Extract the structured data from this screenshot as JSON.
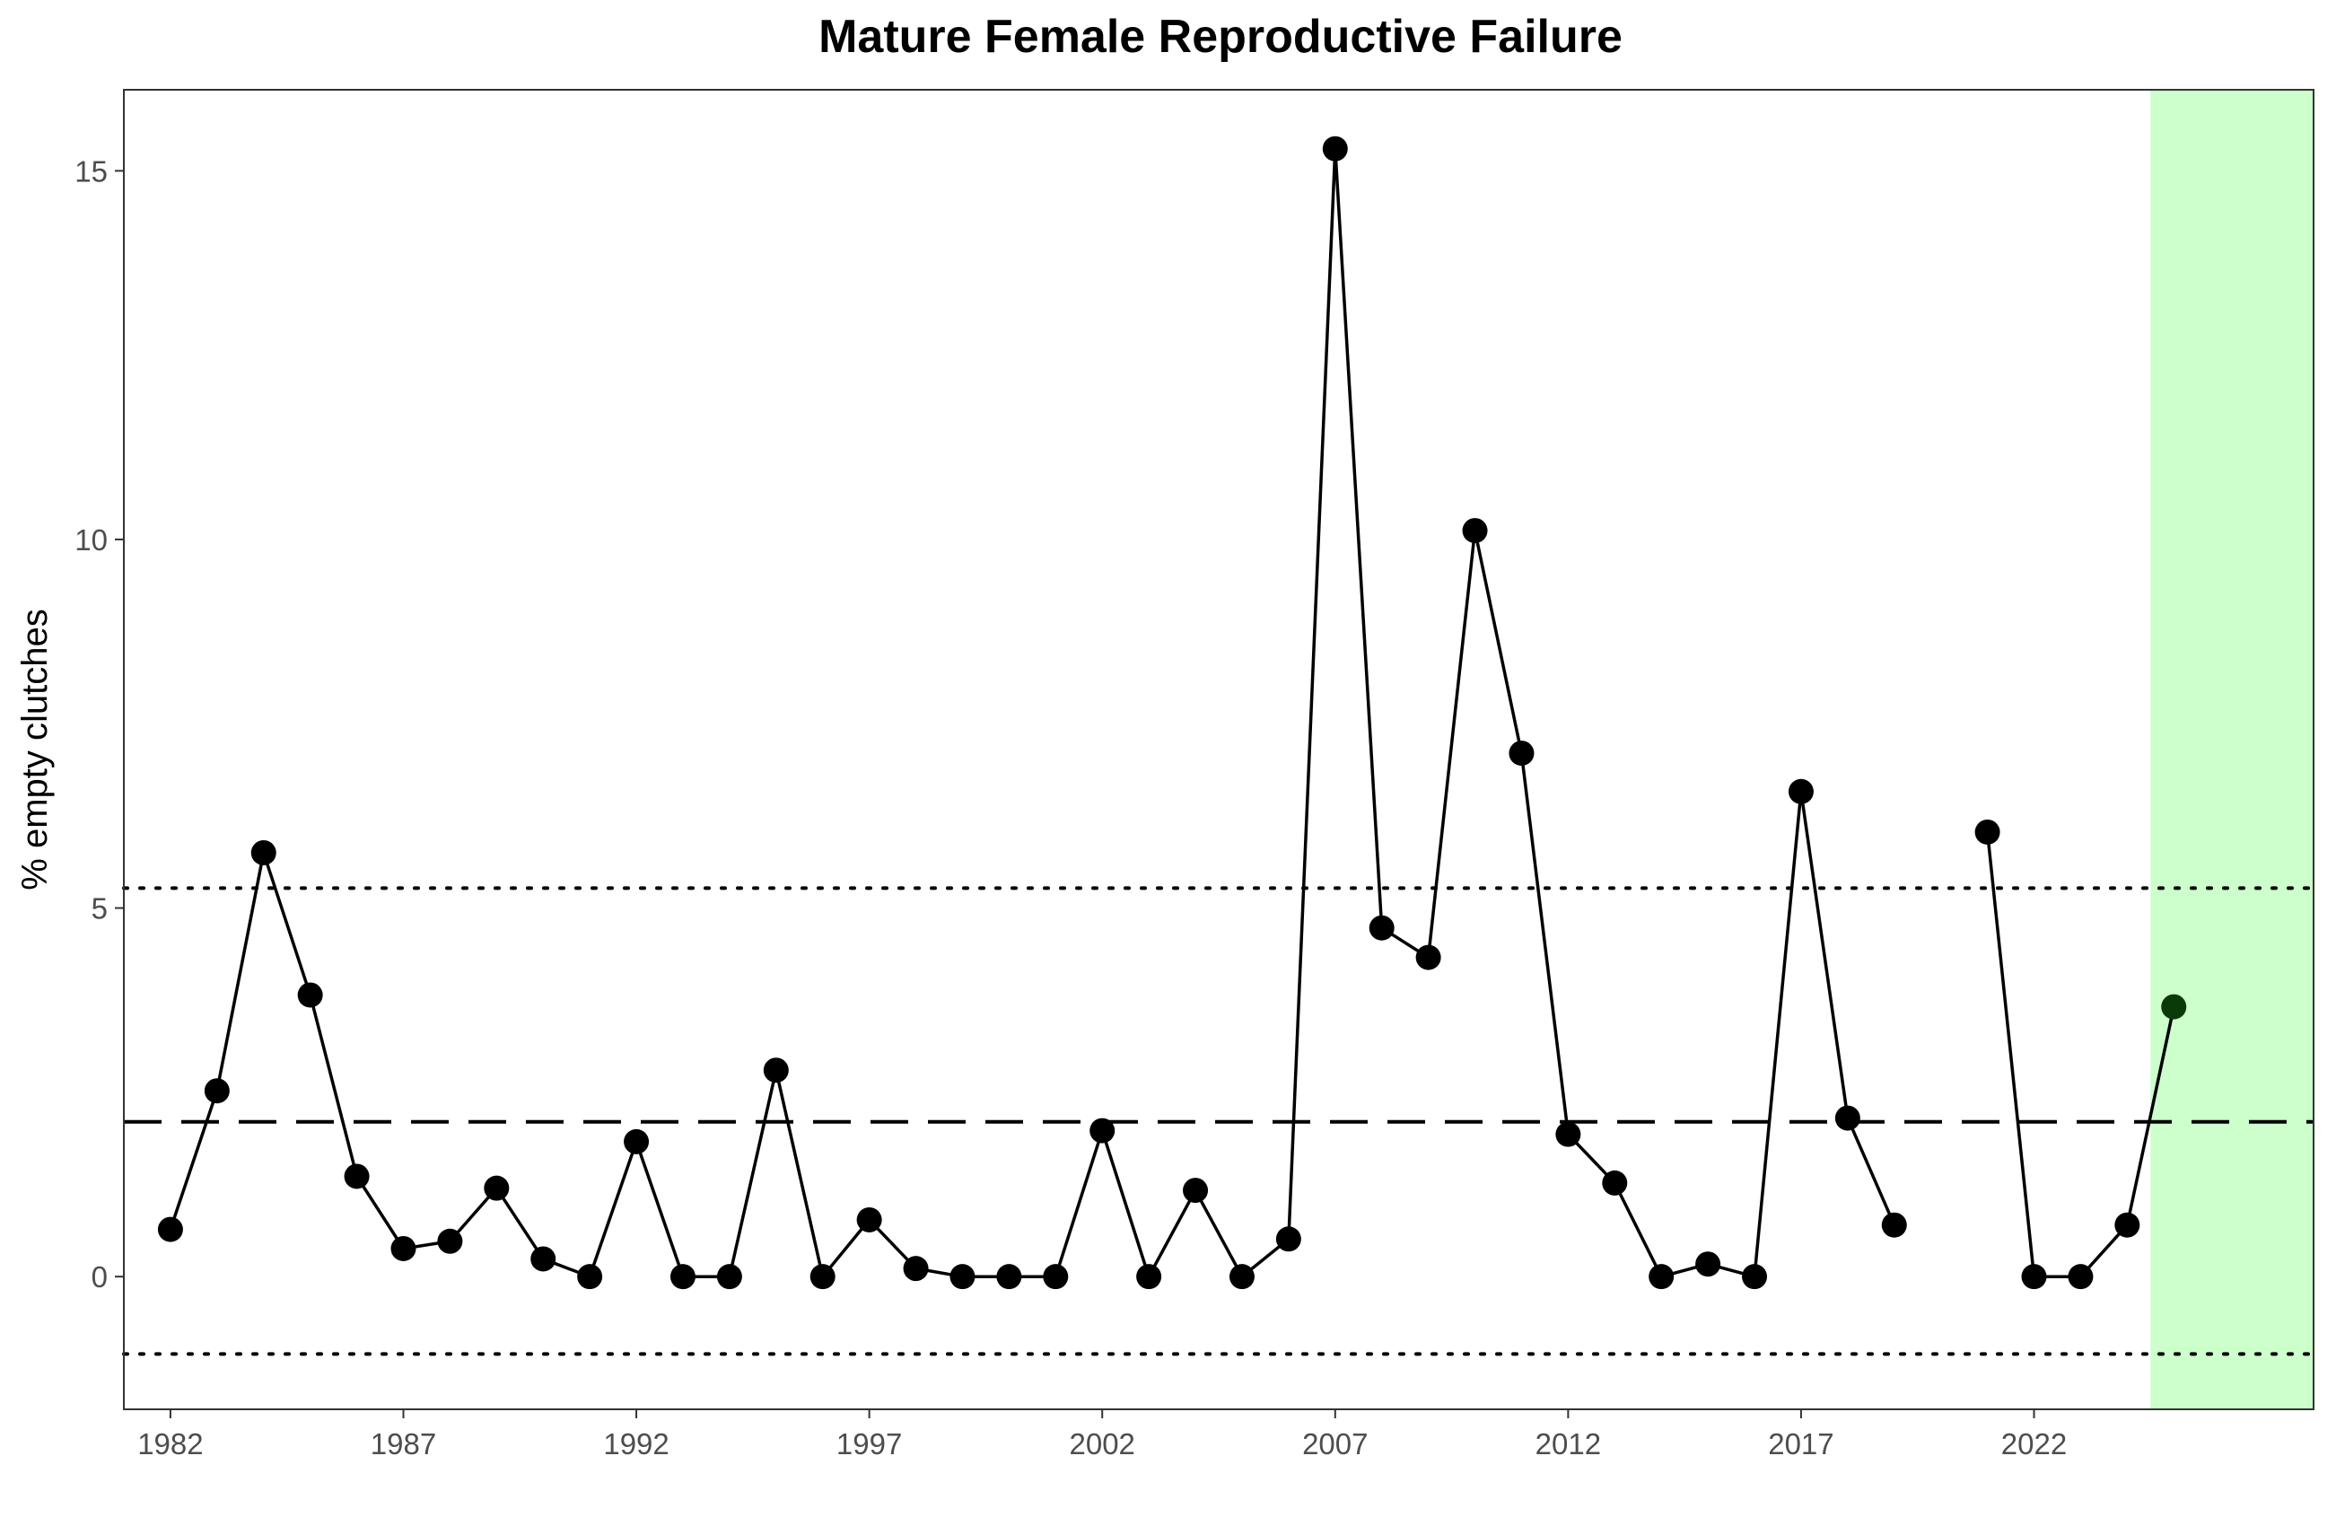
{
  "chart_data": {
    "type": "line",
    "title": "Mature Female Reproductive Failure",
    "xlabel": "",
    "ylabel": "% empty clutches",
    "xlim": [
      1981,
      2028
    ],
    "ylim": [
      -1.8,
      16.1
    ],
    "x_ticks": [
      1982,
      1987,
      1992,
      1997,
      2002,
      2007,
      2012,
      2017,
      2022
    ],
    "y_ticks": [
      0,
      5,
      10,
      15
    ],
    "grid": false,
    "series": [
      {
        "x": [
          1982,
          1983,
          1984,
          1985,
          1986,
          1987,
          1988,
          1989,
          1990,
          1991,
          1992,
          1993,
          1994,
          1995,
          1996,
          1997,
          1998,
          1999,
          2000,
          2001,
          2002,
          2003,
          2004,
          2005,
          2006,
          2007,
          2008,
          2009,
          2010,
          2011,
          2012,
          2013,
          2014,
          2015,
          2016,
          2017,
          2018,
          2019,
          2020,
          2021,
          2022,
          2023,
          2024,
          2025
        ],
        "values": [
          0.64,
          2.52,
          5.75,
          3.82,
          1.36,
          0.38,
          0.48,
          1.2,
          0.24,
          0.0,
          1.83,
          0.0,
          0.0,
          2.8,
          0.0,
          0.77,
          0.11,
          0.0,
          0.0,
          0.0,
          1.98,
          0.0,
          1.17,
          0.0,
          0.51,
          15.3,
          4.73,
          4.33,
          10.12,
          7.1,
          1.93,
          1.27,
          0.0,
          0.17,
          0.0,
          6.58,
          2.15,
          0.7,
          null,
          6.03,
          0.0,
          0.0,
          0.7,
          3.66
        ],
        "color": "#000000"
      }
    ],
    "highlight_point": {
      "x": 2025,
      "y": 3.66,
      "color": "#0a3a0a"
    },
    "reference_lines": [
      {
        "style": "dashed",
        "y": 2.1
      },
      {
        "style": "dotted",
        "y": 5.27
      },
      {
        "style": "dotted",
        "y": -1.05
      }
    ],
    "highlight_region": {
      "x_from": 2024.5,
      "x_to": 2028,
      "color": "#ccffcc"
    }
  }
}
